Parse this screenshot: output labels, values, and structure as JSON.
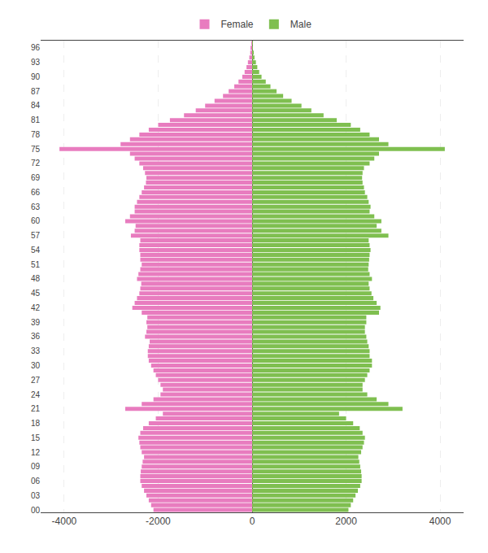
{
  "chart_data": {
    "type": "bar",
    "orientation": "horizontal",
    "categories": [
      "00",
      null,
      null,
      "03",
      null,
      null,
      "06",
      null,
      null,
      "09",
      null,
      null,
      "12",
      null,
      null,
      "15",
      null,
      null,
      "18",
      null,
      null,
      "21",
      null,
      null,
      "24",
      null,
      null,
      "27",
      null,
      null,
      "30",
      null,
      null,
      "33",
      null,
      null,
      "36",
      null,
      null,
      "39",
      null,
      null,
      "42",
      null,
      null,
      "45",
      null,
      null,
      "48",
      null,
      null,
      "51",
      null,
      null,
      "54",
      null,
      null,
      "57",
      null,
      null,
      "60",
      null,
      null,
      "63",
      null,
      null,
      "66",
      null,
      null,
      "69",
      null,
      null,
      "72",
      null,
      null,
      "75",
      null,
      null,
      "78",
      null,
      null,
      "81",
      null,
      null,
      "84",
      null,
      null,
      "87",
      null,
      null,
      "90",
      null,
      null,
      "93",
      null,
      null,
      "96",
      null
    ],
    "series": [
      {
        "name": "Female",
        "color": "#e87cbf",
        "values": [
          -2100,
          -2150,
          -2200,
          -2250,
          -2300,
          -2350,
          -2380,
          -2380,
          -2370,
          -2350,
          -2330,
          -2300,
          -2350,
          -2380,
          -2400,
          -2420,
          -2380,
          -2320,
          -2200,
          -2050,
          -1900,
          -2700,
          -2350,
          -2100,
          -1950,
          -1900,
          -1950,
          -2000,
          -2050,
          -2100,
          -2150,
          -2200,
          -2220,
          -2220,
          -2200,
          -2180,
          -2280,
          -2250,
          -2230,
          -2250,
          -2230,
          -2350,
          -2550,
          -2500,
          -2450,
          -2400,
          -2380,
          -2360,
          -2450,
          -2420,
          -2380,
          -2350,
          -2380,
          -2380,
          -2400,
          -2400,
          -2380,
          -2580,
          -2500,
          -2480,
          -2700,
          -2600,
          -2500,
          -2500,
          -2450,
          -2400,
          -2350,
          -2300,
          -2260,
          -2250,
          -2280,
          -2320,
          -2400,
          -2500,
          -2600,
          -4100,
          -2800,
          -2600,
          -2400,
          -2200,
          -2000,
          -1750,
          -1450,
          -1200,
          -1000,
          -800,
          -620,
          -500,
          -380,
          -290,
          -210,
          -160,
          -120,
          -90,
          -60,
          -40,
          -20,
          -10
        ]
      },
      {
        "name": "Male",
        "color": "#7fbf50",
        "values": [
          2050,
          2100,
          2150,
          2200,
          2250,
          2300,
          2330,
          2330,
          2320,
          2300,
          2280,
          2260,
          2320,
          2350,
          2380,
          2400,
          2350,
          2290,
          2150,
          2000,
          1850,
          3200,
          2900,
          2650,
          2450,
          2350,
          2350,
          2400,
          2450,
          2500,
          2550,
          2550,
          2500,
          2500,
          2480,
          2450,
          2430,
          2400,
          2400,
          2430,
          2430,
          2700,
          2730,
          2650,
          2580,
          2540,
          2500,
          2480,
          2550,
          2500,
          2470,
          2480,
          2490,
          2500,
          2520,
          2500,
          2480,
          2900,
          2750,
          2650,
          2750,
          2600,
          2500,
          2520,
          2480,
          2450,
          2400,
          2380,
          2350,
          2340,
          2350,
          2380,
          2500,
          2600,
          2700,
          4100,
          2900,
          2700,
          2500,
          2300,
          2100,
          1800,
          1520,
          1260,
          1050,
          840,
          660,
          520,
          390,
          290,
          200,
          150,
          110,
          80,
          50,
          30,
          15,
          8
        ]
      }
    ],
    "xlim": [
      -4500,
      4500
    ],
    "xticks": [
      -4000,
      -2000,
      0,
      2000,
      4000
    ],
    "grid": true,
    "legend": "top"
  }
}
